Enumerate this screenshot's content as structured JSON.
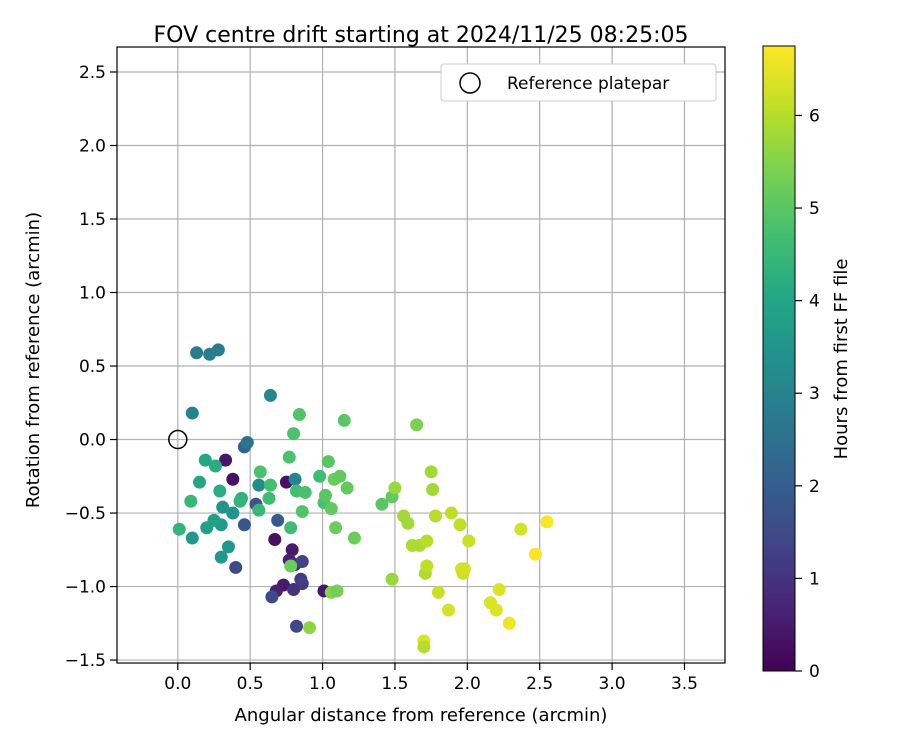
{
  "chart_data": {
    "type": "scatter",
    "title": "FOV centre drift starting at 2024/11/25 08:25:05",
    "xlabel": "Angular distance from reference (arcmin)",
    "ylabel": "Rotation from reference (arcmin)",
    "xlim": [
      -0.42,
      3.78
    ],
    "ylim": [
      -1.52,
      2.67
    ],
    "xticks": [
      "0.0",
      "0.5",
      "1.0",
      "1.5",
      "2.0",
      "2.5",
      "3.0",
      "3.5"
    ],
    "yticks": [
      "−1.5",
      "−1.0",
      "−0.5",
      "0.0",
      "0.5",
      "1.0",
      "1.5",
      "2.0",
      "2.5"
    ],
    "grid": true,
    "legend": {
      "position": "top-right",
      "entries": [
        {
          "label": "Reference platepar",
          "marker": "open-circle"
        }
      ]
    },
    "reference_point": {
      "x": 0.0,
      "y": 0.0
    },
    "colorbar": {
      "label": "Hours from first FF file",
      "colormap": "viridis",
      "range": [
        0,
        6.75
      ],
      "ticks": [
        "0",
        "1",
        "2",
        "3",
        "4",
        "5",
        "6"
      ]
    },
    "points": [
      {
        "x": 0.38,
        "y": -0.27,
        "h": 0.3
      },
      {
        "x": 0.33,
        "y": -0.14,
        "h": 0.4
      },
      {
        "x": 0.67,
        "y": -0.68,
        "h": 0.3
      },
      {
        "x": 0.75,
        "y": -0.29,
        "h": 0.3
      },
      {
        "x": 0.79,
        "y": -0.75,
        "h": 0.5
      },
      {
        "x": 0.77,
        "y": -0.82,
        "h": 0.6
      },
      {
        "x": 0.73,
        "y": -0.99,
        "h": 0.5
      },
      {
        "x": 0.68,
        "y": -1.03,
        "h": 0.6
      },
      {
        "x": 0.81,
        "y": -0.85,
        "h": 0.9
      },
      {
        "x": 0.85,
        "y": -0.95,
        "h": 1.1
      },
      {
        "x": 0.86,
        "y": -0.98,
        "h": 1.2
      },
      {
        "x": 0.8,
        "y": -1.02,
        "h": 1.0
      },
      {
        "x": 0.82,
        "y": -1.27,
        "h": 1.4
      },
      {
        "x": 0.86,
        "y": -0.83,
        "h": 1.3
      },
      {
        "x": 1.01,
        "y": -1.03,
        "h": 0.4
      },
      {
        "x": 0.65,
        "y": -1.07,
        "h": 1.5
      },
      {
        "x": 0.4,
        "y": -0.87,
        "h": 1.5
      },
      {
        "x": 0.46,
        "y": -0.58,
        "h": 1.8
      },
      {
        "x": 0.69,
        "y": -0.55,
        "h": 1.9
      },
      {
        "x": 0.54,
        "y": -0.44,
        "h": 1.7
      },
      {
        "x": 0.46,
        "y": -0.05,
        "h": 2.2
      },
      {
        "x": 0.48,
        "y": -0.02,
        "h": 2.6
      },
      {
        "x": 0.13,
        "y": 0.59,
        "h": 2.8
      },
      {
        "x": 0.22,
        "y": 0.58,
        "h": 2.9
      },
      {
        "x": 0.28,
        "y": 0.61,
        "h": 2.8
      },
      {
        "x": 0.1,
        "y": 0.18,
        "h": 3.0
      },
      {
        "x": 0.64,
        "y": 0.3,
        "h": 3.1
      },
      {
        "x": 0.81,
        "y": -0.27,
        "h": 3.1
      },
      {
        "x": 0.56,
        "y": -0.31,
        "h": 3.3
      },
      {
        "x": 0.38,
        "y": -0.5,
        "h": 3.4
      },
      {
        "x": 0.31,
        "y": -0.46,
        "h": 3.5
      },
      {
        "x": 0.35,
        "y": -0.73,
        "h": 3.6
      },
      {
        "x": 0.3,
        "y": -0.8,
        "h": 3.6
      },
      {
        "x": 0.1,
        "y": -0.67,
        "h": 3.6
      },
      {
        "x": 0.3,
        "y": -0.58,
        "h": 3.7
      },
      {
        "x": 0.25,
        "y": -0.55,
        "h": 3.8
      },
      {
        "x": 0.2,
        "y": -0.6,
        "h": 3.8
      },
      {
        "x": 0.15,
        "y": -0.29,
        "h": 4.0
      },
      {
        "x": 0.19,
        "y": -0.14,
        "h": 4.0
      },
      {
        "x": 0.26,
        "y": -0.18,
        "h": 4.2
      },
      {
        "x": 0.29,
        "y": -0.35,
        "h": 4.2
      },
      {
        "x": 0.44,
        "y": -0.4,
        "h": 4.3
      },
      {
        "x": 0.43,
        "y": -0.42,
        "h": 4.4
      },
      {
        "x": 0.56,
        "y": -0.48,
        "h": 4.5
      },
      {
        "x": 0.09,
        "y": -0.42,
        "h": 4.5
      },
      {
        "x": 0.01,
        "y": -0.61,
        "h": 4.4
      },
      {
        "x": 0.63,
        "y": -0.4,
        "h": 4.6
      },
      {
        "x": 0.64,
        "y": -0.31,
        "h": 4.7
      },
      {
        "x": 0.57,
        "y": -0.22,
        "h": 4.8
      },
      {
        "x": 0.78,
        "y": -0.6,
        "h": 4.6
      },
      {
        "x": 0.8,
        "y": 0.04,
        "h": 4.8
      },
      {
        "x": 0.84,
        "y": 0.17,
        "h": 4.9
      },
      {
        "x": 0.77,
        "y": -0.12,
        "h": 4.8
      },
      {
        "x": 0.82,
        "y": -0.35,
        "h": 4.7
      },
      {
        "x": 0.88,
        "y": -0.36,
        "h": 4.8
      },
      {
        "x": 0.86,
        "y": -0.49,
        "h": 4.9
      },
      {
        "x": 0.98,
        "y": -0.25,
        "h": 4.6
      },
      {
        "x": 1.01,
        "y": -0.43,
        "h": 4.8
      },
      {
        "x": 1.02,
        "y": -0.38,
        "h": 5.0
      },
      {
        "x": 1.04,
        "y": -0.15,
        "h": 5.0
      },
      {
        "x": 1.06,
        "y": -0.47,
        "h": 5.1
      },
      {
        "x": 1.09,
        "y": -0.6,
        "h": 5.2
      },
      {
        "x": 1.08,
        "y": -0.27,
        "h": 5.2
      },
      {
        "x": 1.12,
        "y": -0.25,
        "h": 5.1
      },
      {
        "x": 1.15,
        "y": 0.13,
        "h": 5.0
      },
      {
        "x": 1.17,
        "y": -0.33,
        "h": 5.1
      },
      {
        "x": 1.22,
        "y": -0.67,
        "h": 5.2
      },
      {
        "x": 1.41,
        "y": -0.44,
        "h": 5.0
      },
      {
        "x": 1.48,
        "y": -0.39,
        "h": 5.1
      },
      {
        "x": 1.5,
        "y": -0.33,
        "h": 5.7
      },
      {
        "x": 1.48,
        "y": -0.95,
        "h": 5.7
      },
      {
        "x": 1.06,
        "y": -1.04,
        "h": 5.5
      },
      {
        "x": 1.1,
        "y": -1.03,
        "h": 5.3
      },
      {
        "x": 0.91,
        "y": -1.28,
        "h": 5.6
      },
      {
        "x": 0.78,
        "y": -0.86,
        "h": 5.2
      },
      {
        "x": 1.56,
        "y": -0.52,
        "h": 5.8
      },
      {
        "x": 1.59,
        "y": -0.57,
        "h": 5.8
      },
      {
        "x": 1.62,
        "y": -0.72,
        "h": 5.9
      },
      {
        "x": 1.65,
        "y": 0.1,
        "h": 5.4
      },
      {
        "x": 1.67,
        "y": -0.72,
        "h": 5.9
      },
      {
        "x": 1.72,
        "y": -0.69,
        "h": 6.0
      },
      {
        "x": 1.71,
        "y": -0.91,
        "h": 5.9
      },
      {
        "x": 1.72,
        "y": -0.86,
        "h": 6.1
      },
      {
        "x": 1.75,
        "y": -0.22,
        "h": 5.8
      },
      {
        "x": 1.76,
        "y": -0.34,
        "h": 5.8
      },
      {
        "x": 1.78,
        "y": -0.52,
        "h": 6.0
      },
      {
        "x": 1.8,
        "y": -1.04,
        "h": 6.2
      },
      {
        "x": 1.87,
        "y": -1.16,
        "h": 6.3
      },
      {
        "x": 1.89,
        "y": -0.5,
        "h": 6.1
      },
      {
        "x": 1.95,
        "y": -0.58,
        "h": 6.1
      },
      {
        "x": 1.96,
        "y": -0.88,
        "h": 6.3
      },
      {
        "x": 1.97,
        "y": -0.91,
        "h": 6.2
      },
      {
        "x": 1.98,
        "y": -0.88,
        "h": 6.3
      },
      {
        "x": 2.01,
        "y": -0.69,
        "h": 6.2
      },
      {
        "x": 1.7,
        "y": -1.37,
        "h": 6.4
      },
      {
        "x": 1.7,
        "y": -1.41,
        "h": 6.0
      },
      {
        "x": 2.16,
        "y": -1.11,
        "h": 6.4
      },
      {
        "x": 2.2,
        "y": -1.16,
        "h": 6.4
      },
      {
        "x": 2.22,
        "y": -1.02,
        "h": 6.4
      },
      {
        "x": 2.29,
        "y": -1.25,
        "h": 6.6
      },
      {
        "x": 2.37,
        "y": -0.61,
        "h": 6.3
      },
      {
        "x": 2.47,
        "y": -0.78,
        "h": 6.7
      },
      {
        "x": 2.55,
        "y": -0.56,
        "h": 6.7
      }
    ]
  }
}
